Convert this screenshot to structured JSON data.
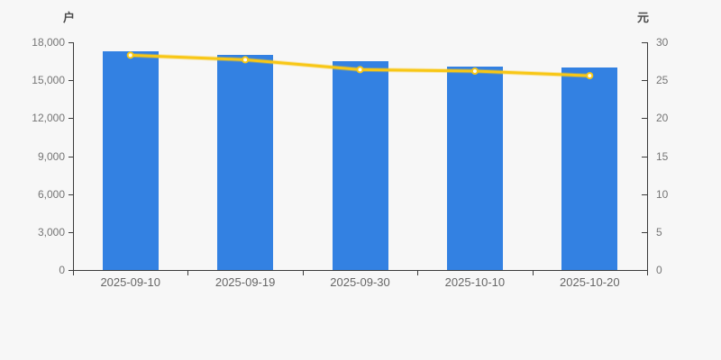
{
  "chart_data": {
    "type": "bar+line",
    "title": "",
    "categories": [
      "2025-09-10",
      "2025-09-19",
      "2025-09-30",
      "2025-10-10",
      "2025-10-20"
    ],
    "series": [
      {
        "type": "bar",
        "axis": "left",
        "unit": "户",
        "color": "#3381e2",
        "values": [
          17300,
          17000,
          16500,
          16100,
          16000
        ]
      },
      {
        "type": "line",
        "axis": "right",
        "unit": "元",
        "color": "#f8c716",
        "marker_fill": "#fffdf0",
        "values": [
          28.3,
          27.7,
          26.4,
          26.2,
          25.6
        ]
      }
    ],
    "left_axis": {
      "name": "户",
      "min": 0,
      "max": 18000,
      "tick_step": 3000,
      "tick_labels": [
        "0",
        "3,000",
        "6,000",
        "9,000",
        "12,000",
        "15,000",
        "18,000"
      ]
    },
    "right_axis": {
      "name": "元",
      "min": 0,
      "max": 30,
      "tick_step": 5,
      "tick_labels": [
        "0",
        "5",
        "10",
        "15",
        "20",
        "25",
        "30"
      ]
    },
    "grid": false,
    "legend": "none"
  },
  "colors": {
    "background": "#f7f7f7",
    "axis_line": "#3b3b3b",
    "tick_text": "#757575",
    "x_label_text": "#666666",
    "bar": "#3381e2",
    "line": "#f8c716",
    "marker_fill": "#fffdf0"
  }
}
